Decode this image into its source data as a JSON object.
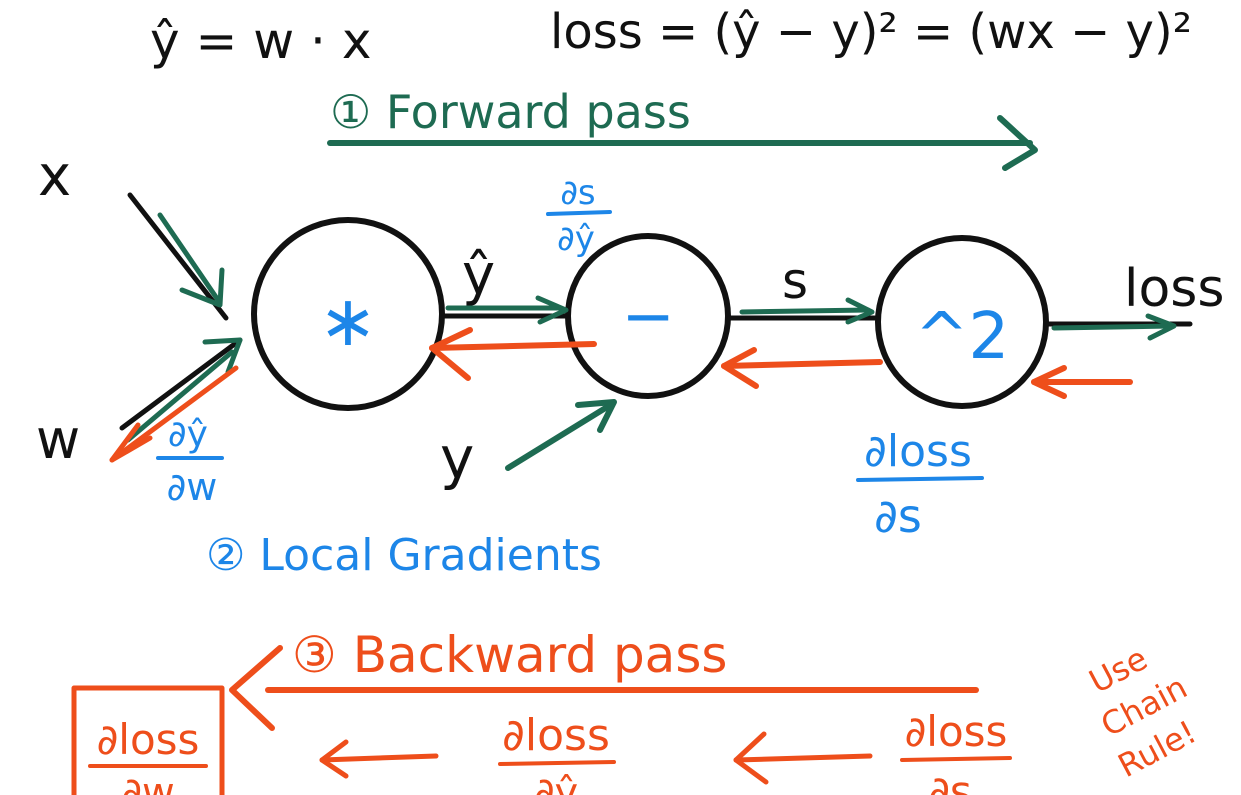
{
  "equations": {
    "prediction": "ŷ = w · x",
    "loss": "loss = (ŷ − y)²  = (wx − y)²"
  },
  "steps": {
    "forward": "① Forward pass",
    "local": "② Local Gradients",
    "backward": "③ Backward pass"
  },
  "inputs": {
    "x": "x",
    "w": "w",
    "y": "y"
  },
  "nodes": {
    "multiply": "∗",
    "subtract": "−",
    "square": "^2"
  },
  "edges": {
    "y_hat": "ŷ",
    "s": "s",
    "loss": "loss"
  },
  "local_gradients": {
    "dyhat_dw_num": "∂ŷ",
    "dyhat_dw_den": "∂w",
    "ds_dyhat_num": "∂s",
    "ds_dyhat_den": "∂ŷ",
    "dloss_ds_num": "∂loss",
    "dloss_ds_den": "∂s"
  },
  "backward_terms": {
    "dloss_dw_num": "∂loss",
    "dloss_dw_den": "∂w",
    "dloss_dyhat_num": "∂loss",
    "dloss_dyhat_den": "∂ŷ",
    "dloss_ds_num": "∂loss",
    "dloss_ds_den": "∂s"
  },
  "note": {
    "line1": "Use",
    "line2": "Chain",
    "line3": "Rule!"
  },
  "colors": {
    "ink": "#111111",
    "forward": "#1e6b52",
    "local": "#1d86e8",
    "backward": "#ee4e1b"
  }
}
